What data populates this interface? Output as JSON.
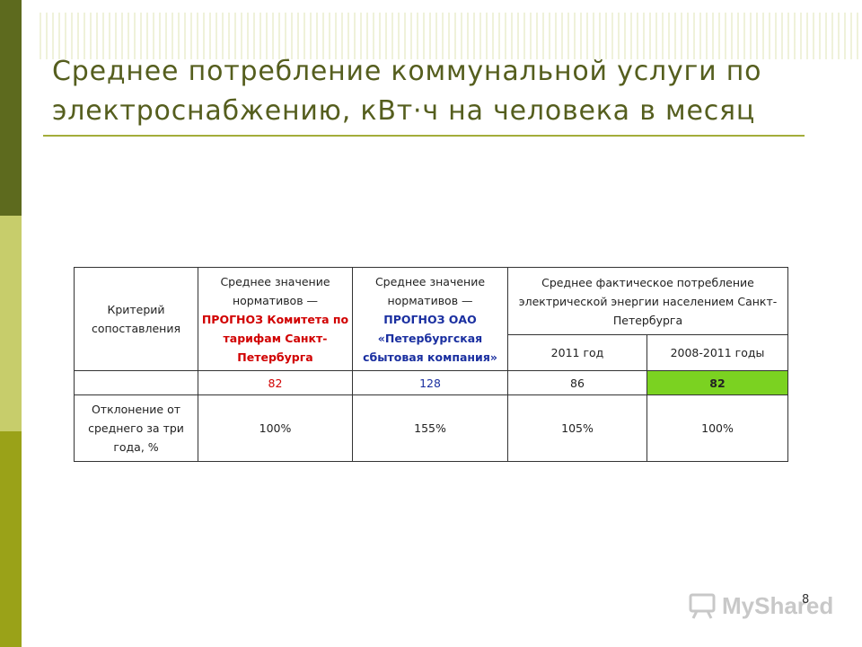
{
  "slide": {
    "title": "Среднее потребление коммунальной услуги по электроснабжению, кВт·ч на человека в месяц",
    "page_number": "8"
  },
  "table": {
    "criterion_header": "Критерий сопоставления",
    "col1": {
      "intro": "Среднее значение нормативов —",
      "source": "ПРОГНОЗ Комитета по тарифам Санкт-Петербурга"
    },
    "col2": {
      "intro": "Среднее значение нормативов —",
      "source": "ПРОГНОЗ ОАО «Петербургская сбытовая компания»"
    },
    "col3_group": "Среднее фактическое потребление электрической энергии населением Санкт-Петербурга",
    "sub_2011": "2011 год",
    "sub_2008_2011": "2008-2011 годы",
    "values_row": [
      "82",
      "128",
      "86",
      "82"
    ],
    "deviation_label": "Отклонение от среднего за три года, %",
    "deviation_row": [
      "100%",
      "155%",
      "105%",
      "100%"
    ],
    "colors": {
      "red": "#d10000",
      "blue": "#1a2fa0",
      "highlight": "#7bd221"
    }
  },
  "watermark": {
    "brand": "MyShared",
    "icon": "presentation-board-icon"
  }
}
